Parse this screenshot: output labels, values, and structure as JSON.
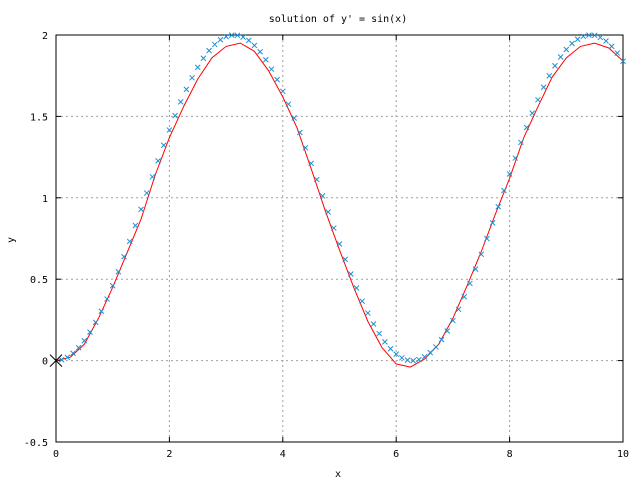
{
  "chart_data": {
    "type": "line",
    "title": "solution of y' =  sin(x)",
    "xlabel": "x",
    "ylabel": "y",
    "xlim": [
      0,
      10
    ],
    "ylim": [
      -0.5,
      2
    ],
    "x_ticks": [
      "0",
      "2",
      "4",
      "6",
      "8",
      "10"
    ],
    "y_ticks": [
      "-0.5",
      "0",
      "0.5",
      "1",
      "1.5",
      "2"
    ],
    "grid": true,
    "legend": "none",
    "series": [
      {
        "style": "line",
        "color": "#ff0000",
        "x": [
          0,
          0.25,
          0.5,
          0.75,
          1,
          1.25,
          1.5,
          1.75,
          2,
          2.25,
          2.5,
          2.75,
          3,
          3.25,
          3.5,
          3.75,
          4,
          4.25,
          4.5,
          4.75,
          5,
          5.25,
          5.5,
          5.75,
          6,
          6.25,
          6.5,
          6.75,
          7,
          7.25,
          7.5,
          7.75,
          8,
          8.25,
          8.5,
          8.75,
          9,
          9.25,
          9.5,
          9.75,
          10
        ],
        "y": [
          0,
          0.02,
          0.1,
          0.26,
          0.45,
          0.66,
          0.87,
          1.14,
          1.37,
          1.56,
          1.73,
          1.86,
          1.93,
          1.95,
          1.9,
          1.78,
          1.62,
          1.43,
          1.18,
          0.92,
          0.68,
          0.45,
          0.24,
          0.08,
          -0.02,
          -0.04,
          0.01,
          0.1,
          0.26,
          0.46,
          0.67,
          0.9,
          1.12,
          1.37,
          1.56,
          1.74,
          1.86,
          1.93,
          1.95,
          1.92,
          1.84
        ]
      },
      {
        "style": "markers",
        "marker": "x",
        "color": "#1f8fd1",
        "x": [
          0.1,
          0.2,
          0.3,
          0.4,
          0.5,
          0.6,
          0.7,
          0.8,
          0.9,
          1,
          1.1,
          1.2,
          1.3,
          1.4,
          1.5,
          1.6,
          1.7,
          1.8,
          1.9,
          2,
          2.1,
          2.2,
          2.3,
          2.4,
          2.5,
          2.6,
          2.7,
          2.8,
          2.9,
          3,
          3.1,
          3.2,
          3.3,
          3.4,
          3.5,
          3.6,
          3.7,
          3.8,
          3.9,
          4,
          4.1,
          4.2,
          4.3,
          4.4,
          4.5,
          4.6,
          4.7,
          4.8,
          4.9,
          5,
          5.1,
          5.2,
          5.3,
          5.4,
          5.5,
          5.6,
          5.7,
          5.8,
          5.9,
          6,
          6.1,
          6.2,
          6.3,
          6.4,
          6.5,
          6.6,
          6.7,
          6.8,
          6.9,
          7,
          7.1,
          7.2,
          7.3,
          7.4,
          7.5,
          7.6,
          7.7,
          7.8,
          7.9,
          8,
          8.1,
          8.2,
          8.3,
          8.4,
          8.5,
          8.6,
          8.7,
          8.8,
          8.9,
          9,
          9.1,
          9.2,
          9.3,
          9.4,
          9.5,
          9.6,
          9.7,
          9.8,
          9.9,
          10
        ],
        "y": [
          0.005,
          0.02,
          0.045,
          0.079,
          0.122,
          0.175,
          0.235,
          0.303,
          0.378,
          0.46,
          0.546,
          0.638,
          0.732,
          0.83,
          0.929,
          1.029,
          1.129,
          1.227,
          1.323,
          1.416,
          1.505,
          1.589,
          1.666,
          1.737,
          1.801,
          1.857,
          1.904,
          1.942,
          1.971,
          1.99,
          1.999,
          1.998,
          1.987,
          1.967,
          1.936,
          1.897,
          1.848,
          1.79,
          1.726,
          1.654,
          1.575,
          1.49,
          1.401,
          1.307,
          1.211,
          1.112,
          1.012,
          0.913,
          0.814,
          0.716,
          0.622,
          0.532,
          0.446,
          0.365,
          0.292,
          0.225,
          0.166,
          0.115,
          0.073,
          0.04,
          0.017,
          0.003,
          0,
          0.006,
          0.023,
          0.049,
          0.084,
          0.129,
          0.182,
          0.246,
          0.315,
          0.392,
          0.474,
          0.562,
          0.653,
          0.749,
          0.846,
          0.945,
          1.045,
          1.146,
          1.244,
          1.34,
          1.432,
          1.52,
          1.602,
          1.679,
          1.749,
          1.811,
          1.865,
          1.911,
          1.948,
          1.974,
          1.992,
          1.999,
          1.998,
          1.985,
          1.963,
          1.93,
          1.889,
          1.839
        ]
      }
    ]
  }
}
